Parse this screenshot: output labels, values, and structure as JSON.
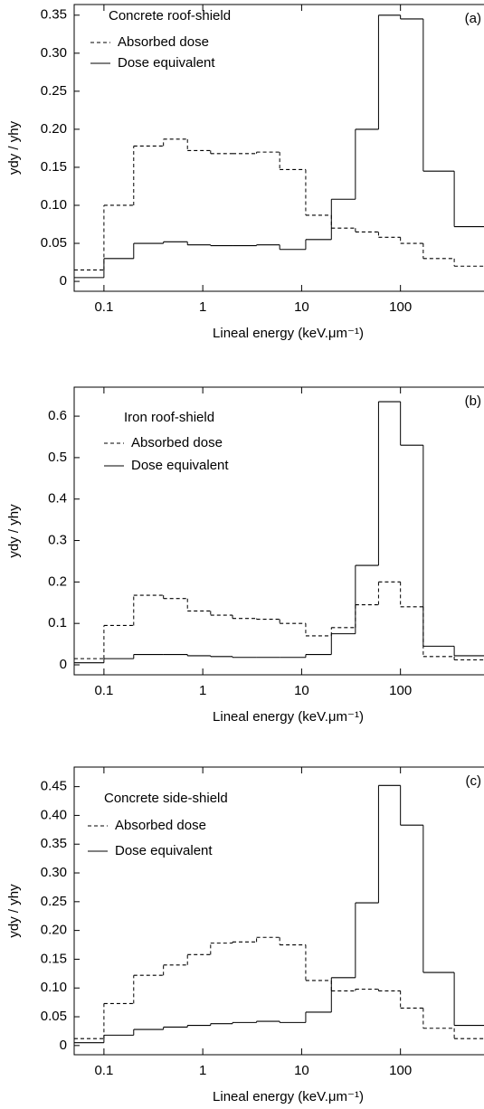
{
  "chart_data": [
    {
      "type": "histogram",
      "title": "Concrete roof-shield",
      "panel_label": "(a)",
      "xlabel": "Lineal energy (keV.μm⁻¹)",
      "ylabel": "ydy / yhy",
      "log_x": true,
      "legend": "upper left",
      "bins": [
        0.05,
        0.1,
        0.2,
        0.4,
        0.7,
        1.2,
        2,
        3.5,
        6,
        11,
        20,
        35,
        60,
        100,
        170,
        350,
        700
      ],
      "series": [
        {
          "name": "Absorbed dose",
          "color": "#000000",
          "dash": true,
          "values": [
            0.015,
            0.1,
            0.178,
            0.187,
            0.172,
            0.168,
            0.168,
            0.17,
            0.147,
            0.087,
            0.07,
            0.065,
            0.058,
            0.05,
            0.03,
            0.02
          ]
        },
        {
          "name": "Dose equivalent",
          "color": "#000000",
          "dash": false,
          "values": [
            0.005,
            0.03,
            0.05,
            0.052,
            0.048,
            0.047,
            0.047,
            0.048,
            0.042,
            0.055,
            0.108,
            0.2,
            0.35,
            0.345,
            0.145,
            0.072
          ]
        }
      ],
      "xlim": [
        0.05,
        700
      ],
      "xticks": [
        0.1,
        1,
        10,
        100
      ],
      "ylim": [
        -0.013,
        0.364
      ],
      "yticks": [
        0,
        0.05,
        {
          "value": 0.1,
          "label": "0.10"
        },
        0.15,
        {
          "value": 0.2,
          "label": "0.20"
        },
        0.25,
        {
          "value": 0.3,
          "label": "0.30"
        },
        0.35
      ]
    },
    {
      "type": "histogram",
      "title": "Iron roof-shield",
      "panel_label": "(b)",
      "xlabel": "Lineal energy (keV.μm⁻¹)",
      "ylabel": "ydy / yhy",
      "log_x": true,
      "legend": "upper left",
      "bins": [
        0.05,
        0.1,
        0.2,
        0.4,
        0.7,
        1.2,
        2,
        3.5,
        6,
        11,
        20,
        35,
        60,
        100,
        170,
        350,
        700
      ],
      "series": [
        {
          "name": "Absorbed dose",
          "color": "#000000",
          "dash": true,
          "values": [
            0.015,
            0.095,
            0.168,
            0.16,
            0.13,
            0.12,
            0.112,
            0.11,
            0.1,
            0.07,
            0.09,
            0.145,
            0.2,
            0.14,
            0.02,
            0.012
          ]
        },
        {
          "name": "Dose equivalent",
          "color": "#000000",
          "dash": false,
          "values": [
            0.005,
            0.015,
            0.025,
            0.025,
            0.022,
            0.02,
            0.018,
            0.018,
            0.018,
            0.025,
            0.075,
            0.24,
            0.635,
            0.53,
            0.045,
            0.022
          ]
        }
      ],
      "xlim": [
        0.05,
        700
      ],
      "xticks": [
        0.1,
        1,
        10,
        100
      ],
      "ylim": [
        -0.024,
        0.67
      ],
      "yticks": [
        0,
        0.1,
        0.2,
        0.3,
        0.4,
        0.5,
        0.6
      ]
    },
    {
      "type": "histogram",
      "title": "Concrete side-shield",
      "panel_label": "(c)",
      "xlabel": "Lineal energy (keV.μm⁻¹)",
      "ylabel": "ydy / yhy",
      "log_x": true,
      "legend": "upper left",
      "bins": [
        0.05,
        0.1,
        0.2,
        0.4,
        0.7,
        1.2,
        2,
        3.5,
        6,
        11,
        20,
        35,
        60,
        100,
        170,
        350,
        700
      ],
      "series": [
        {
          "name": "Absorbed dose",
          "color": "#000000",
          "dash": true,
          "values": [
            0.012,
            0.073,
            0.122,
            0.14,
            0.158,
            0.178,
            0.18,
            0.188,
            0.175,
            0.113,
            0.095,
            0.098,
            0.095,
            0.065,
            0.03,
            0.012
          ]
        },
        {
          "name": "Dose equivalent",
          "color": "#000000",
          "dash": false,
          "values": [
            0.005,
            0.018,
            0.028,
            0.032,
            0.035,
            0.038,
            0.04,
            0.042,
            0.04,
            0.058,
            0.118,
            0.248,
            0.452,
            0.383,
            0.127,
            0.035
          ]
        }
      ],
      "xlim": [
        0.05,
        700
      ],
      "xticks": [
        0.1,
        1,
        10,
        100
      ],
      "ylim": [
        -0.016,
        0.484
      ],
      "yticks": [
        0,
        0.05,
        {
          "value": 0.1,
          "label": "0.10"
        },
        0.15,
        {
          "value": 0.2,
          "label": "0.20"
        },
        0.25,
        {
          "value": 0.3,
          "label": "0.30"
        },
        0.35,
        {
          "value": 0.4,
          "label": "0.40"
        },
        0.45
      ]
    }
  ]
}
